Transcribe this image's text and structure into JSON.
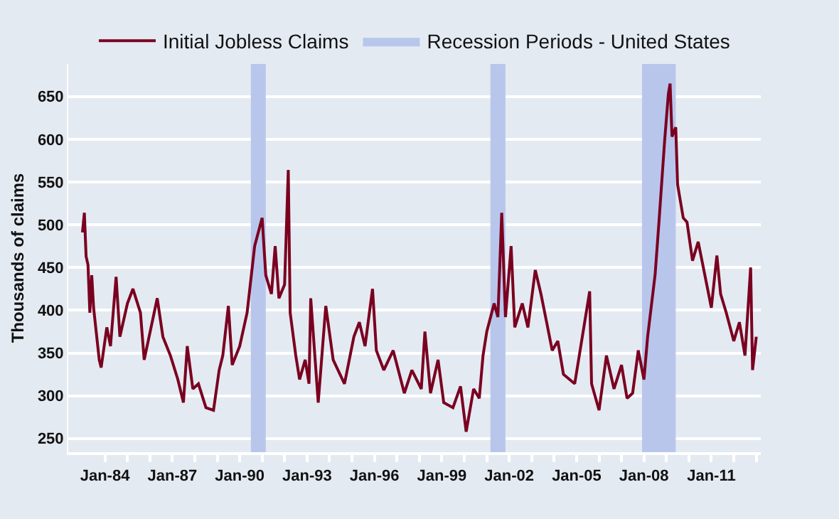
{
  "chart_data": {
    "type": "line",
    "ylabel": "Thousands of claims",
    "x": [
      "1983-01",
      "1983-02",
      "1983-03",
      "1983-04",
      "1983-05",
      "1983-06",
      "1983-07",
      "1983-10",
      "1983-11",
      "1984-02",
      "1984-04",
      "1984-07",
      "1984-09",
      "1985-01",
      "1985-04",
      "1985-08",
      "1985-10",
      "1986-05",
      "1986-08",
      "1986-12",
      "1987-04",
      "1987-07",
      "1987-09",
      "1987-12",
      "1988-03",
      "1988-07",
      "1988-11",
      "1989-02",
      "1989-04",
      "1989-07",
      "1989-09",
      "1990-01",
      "1990-05",
      "1990-09",
      "1991-01",
      "1991-03",
      "1991-06",
      "1991-08",
      "1991-10",
      "1992-01",
      "1992-03",
      "1992-04",
      "1992-07",
      "1992-09",
      "1992-12",
      "1993-02",
      "1993-03",
      "1993-07",
      "1993-11",
      "1994-03",
      "1994-09",
      "1995-02",
      "1995-05",
      "1995-08",
      "1995-12",
      "1996-02",
      "1996-06",
      "1996-11",
      "1997-05",
      "1997-09",
      "1998-02",
      "1998-04",
      "1998-07",
      "1998-11",
      "1999-02",
      "1999-07",
      "1999-11",
      "2000-02",
      "2000-06",
      "2000-09",
      "2000-11",
      "2001-01",
      "2001-05",
      "2001-07",
      "2001-09",
      "2001-11",
      "2002-02",
      "2002-04",
      "2002-08",
      "2002-11",
      "2003-03",
      "2003-06",
      "2003-09",
      "2003-12",
      "2004-03",
      "2004-06",
      "2004-12",
      "2005-08",
      "2005-09",
      "2006-01",
      "2006-05",
      "2006-09",
      "2007-01",
      "2007-04",
      "2007-07",
      "2007-10",
      "2008-01",
      "2008-03",
      "2008-07",
      "2008-09",
      "2008-12",
      "2009-02",
      "2009-03",
      "2009-04",
      "2009-06",
      "2009-07",
      "2009-10",
      "2009-12",
      "2010-03",
      "2010-06",
      "2010-09",
      "2011-01",
      "2011-04",
      "2011-06",
      "2011-09",
      "2012-01",
      "2012-04",
      "2012-07",
      "2012-10",
      "2012-11",
      "2013-01"
    ],
    "series": [
      {
        "name": "Initial Jobless Claims",
        "color": "#7a0020",
        "values": [
          491,
          514,
          463,
          453,
          397,
          441,
          403,
          342,
          333,
          380,
          358,
          439,
          369,
          408,
          425,
          397,
          342,
          414,
          369,
          347,
          319,
          292,
          358,
          308,
          314,
          286,
          283,
          330,
          347,
          405,
          336,
          358,
          397,
          475,
          508,
          441,
          419,
          475,
          414,
          430,
          564,
          397,
          347,
          319,
          342,
          314,
          414,
          292,
          405,
          342,
          314,
          369,
          386,
          358,
          425,
          353,
          330,
          353,
          303,
          330,
          308,
          375,
          303,
          342,
          292,
          286,
          311,
          258,
          308,
          297,
          347,
          375,
          408,
          392,
          514,
          392,
          475,
          380,
          408,
          380,
          447,
          419,
          386,
          353,
          364,
          325,
          314,
          422,
          314,
          283,
          347,
          308,
          336,
          297,
          303,
          353,
          319,
          369,
          442,
          503,
          597,
          653,
          665,
          603,
          614,
          547,
          508,
          503,
          458,
          480,
          447,
          403,
          464,
          419,
          397,
          364,
          386,
          347,
          450,
          330,
          369
        ]
      }
    ],
    "bands": [
      {
        "axis": "x",
        "from": "1990-07",
        "to": "1991-03",
        "label": "Recession Periods - United States",
        "color": "#b9c6ec"
      },
      {
        "axis": "x",
        "from": "2001-03",
        "to": "2001-11",
        "color": "#b9c6ec"
      },
      {
        "axis": "x",
        "from": "2007-12",
        "to": "2009-06",
        "color": "#b9c6ec"
      }
    ],
    "xlim": [
      "1982-05-15",
      "2013-03-15"
    ],
    "xticks": [
      {
        "value": "1984-01",
        "label": "Jan-84"
      },
      {
        "value": "1985-01",
        "label": null
      },
      {
        "value": "1986-01",
        "label": null
      },
      {
        "value": "1987-01",
        "label": "Jan-87"
      },
      {
        "value": "1988-01",
        "label": null
      },
      {
        "value": "1989-01",
        "label": null
      },
      {
        "value": "1990-01",
        "label": "Jan-90"
      },
      {
        "value": "1991-01",
        "label": null
      },
      {
        "value": "1992-01",
        "label": null
      },
      {
        "value": "1993-01",
        "label": "Jan-93"
      },
      {
        "value": "1994-01",
        "label": null
      },
      {
        "value": "1995-01",
        "label": null
      },
      {
        "value": "1996-01",
        "label": "Jan-96"
      },
      {
        "value": "1997-01",
        "label": null
      },
      {
        "value": "1998-01",
        "label": null
      },
      {
        "value": "1999-01",
        "label": "Jan-99"
      },
      {
        "value": "2000-01",
        "label": null
      },
      {
        "value": "2001-01",
        "label": null
      },
      {
        "value": "2002-01",
        "label": "Jan-02"
      },
      {
        "value": "2003-01",
        "label": null
      },
      {
        "value": "2004-01",
        "label": null
      },
      {
        "value": "2005-01",
        "label": "Jan-05"
      },
      {
        "value": "2006-01",
        "label": null
      },
      {
        "value": "2007-01",
        "label": null
      },
      {
        "value": "2008-01",
        "label": "Jan-08"
      },
      {
        "value": "2009-01",
        "label": null
      },
      {
        "value": "2010-01",
        "label": null
      },
      {
        "value": "2011-01",
        "label": "Jan-11"
      },
      {
        "value": "2012-01",
        "label": null
      },
      {
        "value": "2013-01",
        "label": null
      }
    ],
    "ylim": [
      234,
      688
    ],
    "yticks": [
      250,
      300,
      350,
      400,
      450,
      500,
      550,
      600,
      650
    ],
    "grid": "y",
    "legend": "top",
    "marker": "none",
    "line_style": "solid"
  }
}
